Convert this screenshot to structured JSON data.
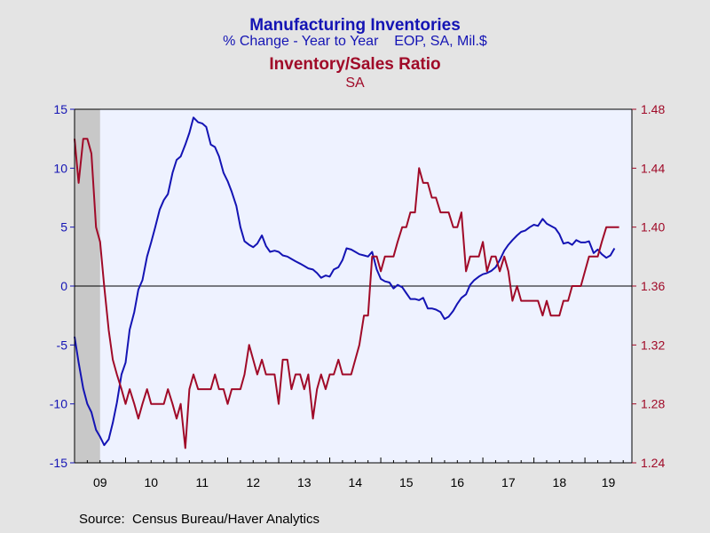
{
  "chart_data": {
    "type": "line",
    "title": "Manufacturing Inventories",
    "subtitle": "% Change - Year to Year    EOP, SA, Mil.$",
    "title2": "Inventory/Sales Ratio",
    "subtitle2": "SA",
    "source": "Source:  Census Bureau/Haver Analytics",
    "x_range": [
      2009.0,
      2019.92
    ],
    "x_ticks": [
      "09",
      "10",
      "11",
      "12",
      "13",
      "14",
      "15",
      "16",
      "17",
      "18",
      "19"
    ],
    "y_left": {
      "min": -15,
      "max": 15,
      "ticks": [
        "15",
        "10",
        "5",
        "0",
        "-5",
        "-10",
        "-15"
      ]
    },
    "y_right": {
      "min": 1.24,
      "max": 1.48,
      "ticks": [
        "1.48",
        "1.44",
        "1.40",
        "1.36",
        "1.32",
        "1.28",
        "1.24"
      ]
    },
    "shaded_recession": [
      2009.0,
      2009.5
    ],
    "zero_line": 0,
    "grid": false,
    "colors": {
      "inventories": "#1414b4",
      "ratio": "#a00a28",
      "plot_bg": "#eef2ff",
      "recession": "#c8c8c8"
    },
    "series": [
      {
        "name": "Manufacturing Inventories",
        "axis": "left",
        "color": "#1414b4",
        "points": [
          [
            2009.0,
            -4.3
          ],
          [
            2009.08,
            -6.5
          ],
          [
            2009.17,
            -8.7
          ],
          [
            2009.25,
            -10.0
          ],
          [
            2009.33,
            -10.7
          ],
          [
            2009.42,
            -12.2
          ],
          [
            2009.5,
            -12.8
          ],
          [
            2009.58,
            -13.5
          ],
          [
            2009.67,
            -13.0
          ],
          [
            2009.75,
            -11.6
          ],
          [
            2009.83,
            -9.9
          ],
          [
            2009.92,
            -7.5
          ],
          [
            2010.0,
            -6.5
          ],
          [
            2010.08,
            -3.7
          ],
          [
            2010.17,
            -2.2
          ],
          [
            2010.25,
            -0.3
          ],
          [
            2010.33,
            0.5
          ],
          [
            2010.42,
            2.5
          ],
          [
            2010.5,
            3.7
          ],
          [
            2010.58,
            5.0
          ],
          [
            2010.67,
            6.5
          ],
          [
            2010.75,
            7.3
          ],
          [
            2010.83,
            7.8
          ],
          [
            2010.92,
            9.6
          ],
          [
            2011.0,
            10.7
          ],
          [
            2011.08,
            11.0
          ],
          [
            2011.17,
            12.0
          ],
          [
            2011.25,
            13.0
          ],
          [
            2011.33,
            14.3
          ],
          [
            2011.42,
            13.9
          ],
          [
            2011.5,
            13.8
          ],
          [
            2011.58,
            13.5
          ],
          [
            2011.67,
            12.0
          ],
          [
            2011.75,
            11.8
          ],
          [
            2011.83,
            11.0
          ],
          [
            2011.92,
            9.6
          ],
          [
            2012.0,
            8.9
          ],
          [
            2012.08,
            8.0
          ],
          [
            2012.17,
            6.8
          ],
          [
            2012.25,
            5.0
          ],
          [
            2012.33,
            3.8
          ],
          [
            2012.42,
            3.5
          ],
          [
            2012.5,
            3.3
          ],
          [
            2012.58,
            3.6
          ],
          [
            2012.67,
            4.3
          ],
          [
            2012.75,
            3.4
          ],
          [
            2012.83,
            2.9
          ],
          [
            2012.92,
            3.0
          ],
          [
            2013.0,
            2.9
          ],
          [
            2013.08,
            2.6
          ],
          [
            2013.17,
            2.5
          ],
          [
            2013.25,
            2.3
          ],
          [
            2013.33,
            2.1
          ],
          [
            2013.42,
            1.9
          ],
          [
            2013.5,
            1.7
          ],
          [
            2013.58,
            1.5
          ],
          [
            2013.67,
            1.4
          ],
          [
            2013.75,
            1.1
          ],
          [
            2013.83,
            0.7
          ],
          [
            2013.92,
            0.9
          ],
          [
            2014.0,
            0.8
          ],
          [
            2014.08,
            1.4
          ],
          [
            2014.17,
            1.6
          ],
          [
            2014.25,
            2.2
          ],
          [
            2014.33,
            3.2
          ],
          [
            2014.42,
            3.1
          ],
          [
            2014.5,
            2.9
          ],
          [
            2014.58,
            2.7
          ],
          [
            2014.67,
            2.6
          ],
          [
            2014.75,
            2.5
          ],
          [
            2014.83,
            2.9
          ],
          [
            2014.92,
            1.4
          ],
          [
            2015.0,
            0.6
          ],
          [
            2015.08,
            0.4
          ],
          [
            2015.17,
            0.3
          ],
          [
            2015.25,
            -0.2
          ],
          [
            2015.33,
            0.1
          ],
          [
            2015.42,
            -0.1
          ],
          [
            2015.5,
            -0.6
          ],
          [
            2015.58,
            -1.1
          ],
          [
            2015.67,
            -1.1
          ],
          [
            2015.75,
            -1.2
          ],
          [
            2015.83,
            -1.0
          ],
          [
            2015.92,
            -1.9
          ],
          [
            2016.0,
            -1.9
          ],
          [
            2016.08,
            -2.0
          ],
          [
            2016.17,
            -2.2
          ],
          [
            2016.25,
            -2.8
          ],
          [
            2016.33,
            -2.6
          ],
          [
            2016.42,
            -2.1
          ],
          [
            2016.5,
            -1.5
          ],
          [
            2016.58,
            -1.0
          ],
          [
            2016.67,
            -0.7
          ],
          [
            2016.75,
            0.1
          ],
          [
            2016.83,
            0.5
          ],
          [
            2016.92,
            0.8
          ],
          [
            2017.0,
            1.0
          ],
          [
            2017.08,
            1.1
          ],
          [
            2017.17,
            1.3
          ],
          [
            2017.25,
            1.6
          ],
          [
            2017.33,
            2.2
          ],
          [
            2017.42,
            3.0
          ],
          [
            2017.5,
            3.5
          ],
          [
            2017.58,
            3.9
          ],
          [
            2017.67,
            4.3
          ],
          [
            2017.75,
            4.6
          ],
          [
            2017.83,
            4.7
          ],
          [
            2017.92,
            5.0
          ],
          [
            2018.0,
            5.2
          ],
          [
            2018.08,
            5.1
          ],
          [
            2018.17,
            5.7
          ],
          [
            2018.25,
            5.3
          ],
          [
            2018.33,
            5.1
          ],
          [
            2018.42,
            4.9
          ],
          [
            2018.5,
            4.4
          ],
          [
            2018.58,
            3.6
          ],
          [
            2018.67,
            3.7
          ],
          [
            2018.75,
            3.5
          ],
          [
            2018.83,
            3.9
          ],
          [
            2018.92,
            3.7
          ],
          [
            2019.0,
            3.7
          ],
          [
            2019.08,
            3.8
          ],
          [
            2019.17,
            2.8
          ],
          [
            2019.25,
            3.1
          ],
          [
            2019.33,
            2.7
          ],
          [
            2019.42,
            2.4
          ],
          [
            2019.5,
            2.6
          ],
          [
            2019.58,
            3.2
          ]
        ]
      },
      {
        "name": "Inventory/Sales Ratio",
        "axis": "right",
        "color": "#a00a28",
        "points": [
          [
            2009.0,
            1.46
          ],
          [
            2009.08,
            1.43
          ],
          [
            2009.17,
            1.46
          ],
          [
            2009.25,
            1.46
          ],
          [
            2009.33,
            1.45
          ],
          [
            2009.42,
            1.4
          ],
          [
            2009.5,
            1.39
          ],
          [
            2009.58,
            1.36
          ],
          [
            2009.67,
            1.33
          ],
          [
            2009.75,
            1.31
          ],
          [
            2009.83,
            1.3
          ],
          [
            2009.92,
            1.29
          ],
          [
            2010.0,
            1.28
          ],
          [
            2010.08,
            1.29
          ],
          [
            2010.17,
            1.28
          ],
          [
            2010.25,
            1.27
          ],
          [
            2010.33,
            1.28
          ],
          [
            2010.42,
            1.29
          ],
          [
            2010.5,
            1.28
          ],
          [
            2010.58,
            1.28
          ],
          [
            2010.67,
            1.28
          ],
          [
            2010.75,
            1.28
          ],
          [
            2010.83,
            1.29
          ],
          [
            2010.92,
            1.28
          ],
          [
            2011.0,
            1.27
          ],
          [
            2011.08,
            1.28
          ],
          [
            2011.17,
            1.25
          ],
          [
            2011.25,
            1.29
          ],
          [
            2011.33,
            1.3
          ],
          [
            2011.42,
            1.29
          ],
          [
            2011.5,
            1.29
          ],
          [
            2011.58,
            1.29
          ],
          [
            2011.67,
            1.29
          ],
          [
            2011.75,
            1.3
          ],
          [
            2011.83,
            1.29
          ],
          [
            2011.92,
            1.29
          ],
          [
            2012.0,
            1.28
          ],
          [
            2012.08,
            1.29
          ],
          [
            2012.17,
            1.29
          ],
          [
            2012.25,
            1.29
          ],
          [
            2012.33,
            1.3
          ],
          [
            2012.42,
            1.32
          ],
          [
            2012.5,
            1.31
          ],
          [
            2012.58,
            1.3
          ],
          [
            2012.67,
            1.31
          ],
          [
            2012.75,
            1.3
          ],
          [
            2012.83,
            1.3
          ],
          [
            2012.92,
            1.3
          ],
          [
            2013.0,
            1.28
          ],
          [
            2013.08,
            1.31
          ],
          [
            2013.17,
            1.31
          ],
          [
            2013.25,
            1.29
          ],
          [
            2013.33,
            1.3
          ],
          [
            2013.42,
            1.3
          ],
          [
            2013.5,
            1.29
          ],
          [
            2013.58,
            1.3
          ],
          [
            2013.67,
            1.27
          ],
          [
            2013.75,
            1.29
          ],
          [
            2013.83,
            1.3
          ],
          [
            2013.92,
            1.29
          ],
          [
            2014.0,
            1.3
          ],
          [
            2014.08,
            1.3
          ],
          [
            2014.17,
            1.31
          ],
          [
            2014.25,
            1.3
          ],
          [
            2014.33,
            1.3
          ],
          [
            2014.42,
            1.3
          ],
          [
            2014.5,
            1.31
          ],
          [
            2014.58,
            1.32
          ],
          [
            2014.67,
            1.34
          ],
          [
            2014.75,
            1.34
          ],
          [
            2014.83,
            1.38
          ],
          [
            2014.92,
            1.38
          ],
          [
            2015.0,
            1.37
          ],
          [
            2015.08,
            1.38
          ],
          [
            2015.17,
            1.38
          ],
          [
            2015.25,
            1.38
          ],
          [
            2015.33,
            1.39
          ],
          [
            2015.42,
            1.4
          ],
          [
            2015.5,
            1.4
          ],
          [
            2015.58,
            1.41
          ],
          [
            2015.67,
            1.41
          ],
          [
            2015.75,
            1.44
          ],
          [
            2015.83,
            1.43
          ],
          [
            2015.92,
            1.43
          ],
          [
            2016.0,
            1.42
          ],
          [
            2016.08,
            1.42
          ],
          [
            2016.17,
            1.41
          ],
          [
            2016.25,
            1.41
          ],
          [
            2016.33,
            1.41
          ],
          [
            2016.42,
            1.4
          ],
          [
            2016.5,
            1.4
          ],
          [
            2016.58,
            1.41
          ],
          [
            2016.67,
            1.37
          ],
          [
            2016.75,
            1.38
          ],
          [
            2016.83,
            1.38
          ],
          [
            2016.92,
            1.38
          ],
          [
            2017.0,
            1.39
          ],
          [
            2017.08,
            1.37
          ],
          [
            2017.17,
            1.38
          ],
          [
            2017.25,
            1.38
          ],
          [
            2017.33,
            1.37
          ],
          [
            2017.42,
            1.38
          ],
          [
            2017.5,
            1.37
          ],
          [
            2017.58,
            1.35
          ],
          [
            2017.67,
            1.36
          ],
          [
            2017.75,
            1.35
          ],
          [
            2017.83,
            1.35
          ],
          [
            2017.92,
            1.35
          ],
          [
            2018.0,
            1.35
          ],
          [
            2018.08,
            1.35
          ],
          [
            2018.17,
            1.34
          ],
          [
            2018.25,
            1.35
          ],
          [
            2018.33,
            1.34
          ],
          [
            2018.42,
            1.34
          ],
          [
            2018.5,
            1.34
          ],
          [
            2018.58,
            1.35
          ],
          [
            2018.67,
            1.35
          ],
          [
            2018.75,
            1.36
          ],
          [
            2018.83,
            1.36
          ],
          [
            2018.92,
            1.36
          ],
          [
            2019.0,
            1.37
          ],
          [
            2019.08,
            1.38
          ],
          [
            2019.17,
            1.38
          ],
          [
            2019.25,
            1.38
          ],
          [
            2019.33,
            1.39
          ],
          [
            2019.42,
            1.4
          ],
          [
            2019.5,
            1.4
          ],
          [
            2019.58,
            1.4
          ],
          [
            2019.67,
            1.4
          ]
        ]
      }
    ]
  }
}
